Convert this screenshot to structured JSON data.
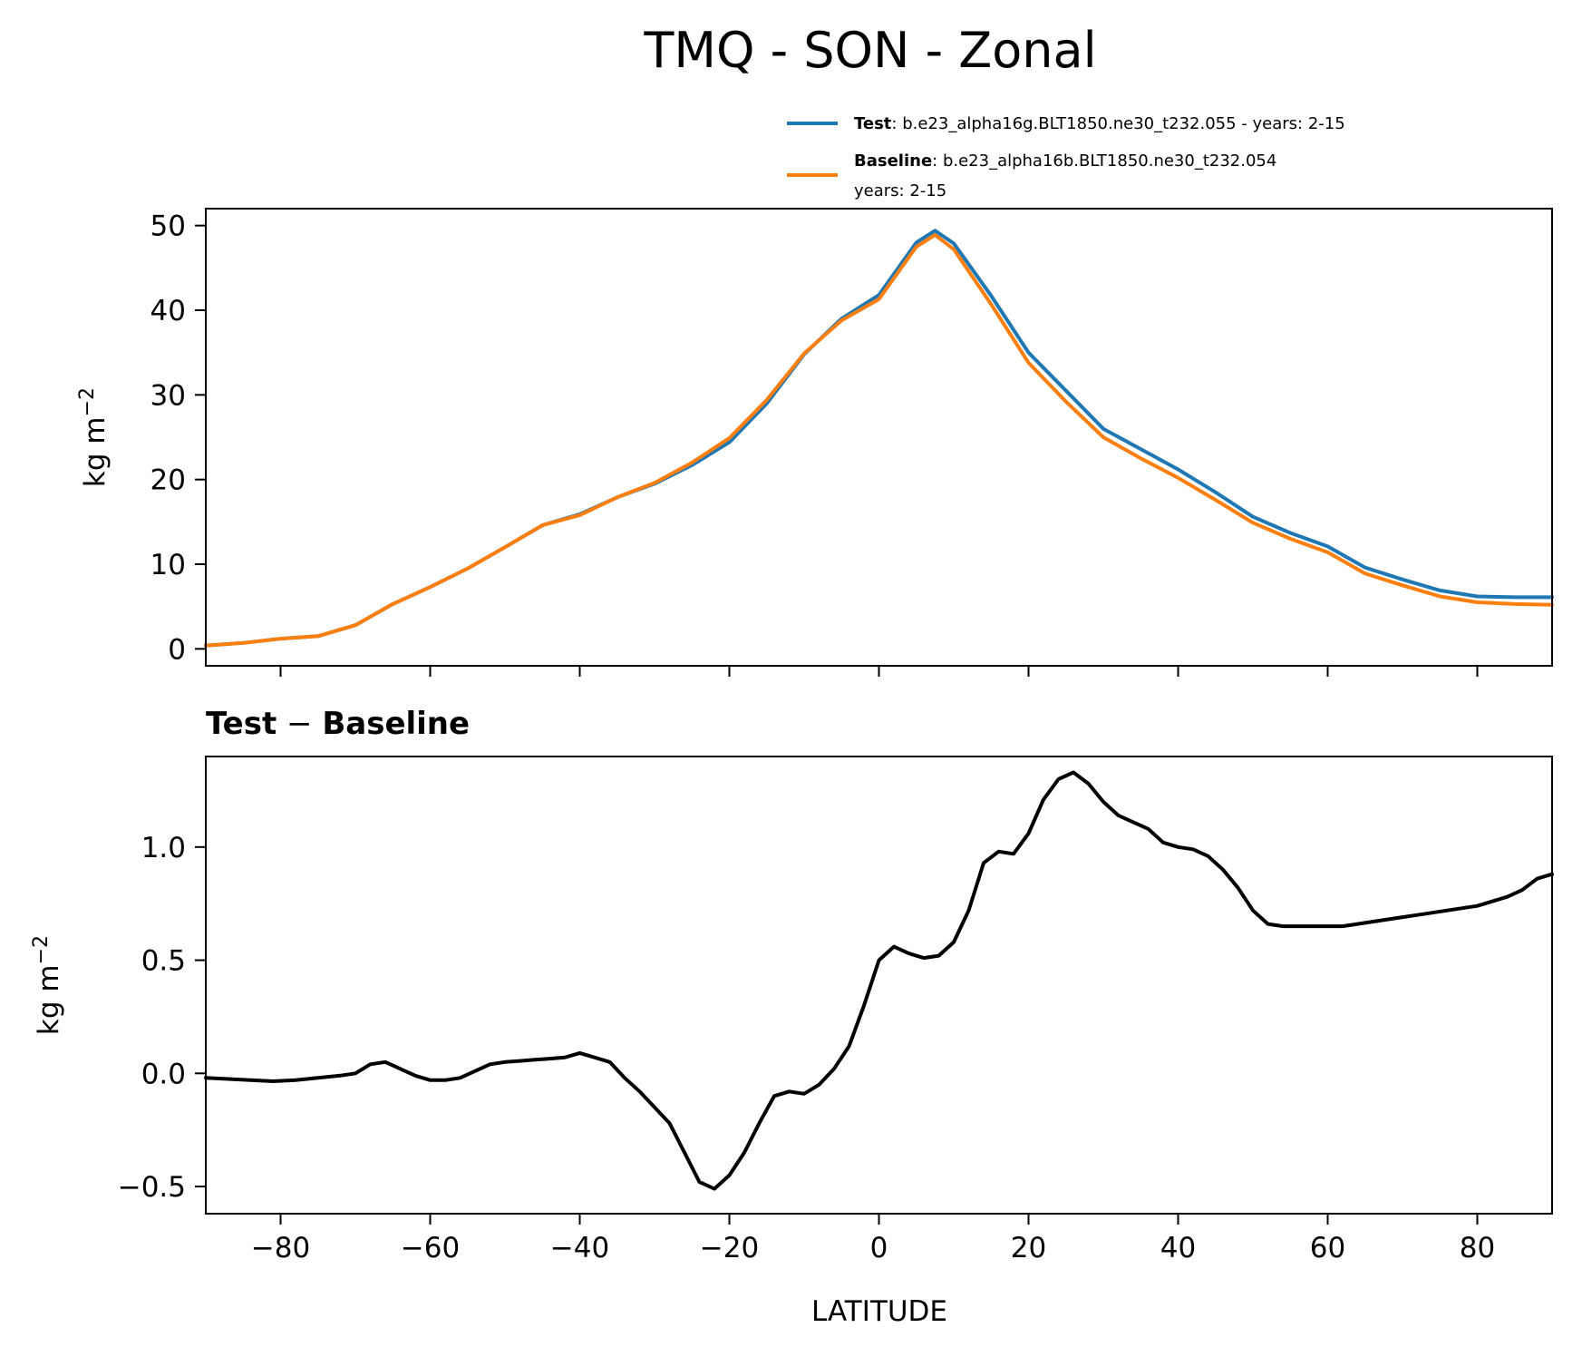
{
  "chart_data": [
    {
      "type": "line",
      "title": "TMQ - SON - Zonal",
      "xlabel": "",
      "ylabel": "kg m",
      "ylabel_sup": "−2",
      "xlim": [
        -90,
        90
      ],
      "ylim": [
        -2,
        52
      ],
      "xticks": [
        -80,
        -60,
        -40,
        -20,
        0,
        20,
        40,
        60,
        80
      ],
      "yticks": [
        0,
        10,
        20,
        30,
        40,
        50
      ],
      "ytick_labels": [
        "0",
        "10",
        "20",
        "30",
        "40",
        "50"
      ],
      "legend": [
        {
          "bold": "Test",
          "text": ": b.e23_alpha16g.BLT1850.ne30_t232.055 - years: 2-15",
          "color": "#1f77b4"
        },
        {
          "bold": "Baseline",
          "text": ": b.e23_alpha16b.BLT1850.ne30_t232.054",
          "text2": "years: 2-15",
          "color": "#ff7f0e"
        }
      ],
      "x": [
        -90,
        -85,
        -80,
        -75,
        -70,
        -65,
        -60,
        -55,
        -50,
        -45,
        -40,
        -35,
        -30,
        -25,
        -20,
        -15,
        -10,
        -5,
        0,
        5,
        7.5,
        10,
        15,
        20,
        25,
        30,
        35,
        40,
        45,
        50,
        55,
        60,
        65,
        70,
        75,
        80,
        85,
        90
      ],
      "series": [
        {
          "name": "Test",
          "color": "#1f77b4",
          "values": [
            0.4,
            0.7,
            1.2,
            1.5,
            2.8,
            5.3,
            7.3,
            9.5,
            12.0,
            14.6,
            15.9,
            17.9,
            19.5,
            21.7,
            24.4,
            29.0,
            34.8,
            39.0,
            41.8,
            48.0,
            49.4,
            47.9,
            41.7,
            35.0,
            30.5,
            26.0,
            23.6,
            21.2,
            18.5,
            15.6,
            13.7,
            12.1,
            9.6,
            8.2,
            6.9,
            6.2,
            6.1,
            6.1
          ]
        },
        {
          "name": "Baseline",
          "color": "#ff7f0e",
          "values": [
            0.4,
            0.7,
            1.2,
            1.5,
            2.8,
            5.3,
            7.3,
            9.5,
            12.0,
            14.6,
            15.8,
            17.9,
            19.6,
            22.0,
            24.9,
            29.4,
            34.9,
            38.8,
            41.3,
            47.5,
            48.9,
            47.2,
            40.7,
            33.8,
            29.2,
            25.0,
            22.5,
            20.2,
            17.6,
            14.9,
            13.0,
            11.4,
            8.9,
            7.5,
            6.2,
            5.5,
            5.3,
            5.2
          ]
        }
      ]
    },
    {
      "type": "line",
      "title": "Test − Baseline",
      "title_bold_1": "Test",
      "title_sep": " − ",
      "title_bold_2": "Baseline",
      "xlabel": "LATITUDE",
      "ylabel": "kg m",
      "ylabel_sup": "−2",
      "xlim": [
        -90,
        90
      ],
      "ylim": [
        -0.62,
        1.4
      ],
      "xticks": [
        -80,
        -60,
        -40,
        -20,
        0,
        20,
        40,
        60,
        80
      ],
      "xtick_labels": [
        "−80",
        "−60",
        "−40",
        "−20",
        "0",
        "20",
        "40",
        "60",
        "80"
      ],
      "yticks": [
        -0.5,
        0.0,
        0.5,
        1.0
      ],
      "ytick_labels": [
        "−0.5",
        "0.0",
        "0.5",
        "1.0"
      ],
      "series": [
        {
          "name": "Test − Baseline",
          "color": "#000000",
          "x": [
            -90,
            -87,
            -84,
            -81,
            -78,
            -75,
            -72,
            -70,
            -68,
            -66,
            -64,
            -62,
            -60,
            -58,
            -56,
            -54,
            -52,
            -50,
            -48,
            -46,
            -44,
            -42,
            -40,
            -38,
            -36,
            -34,
            -32,
            -30,
            -28,
            -26,
            -24,
            -22,
            -20,
            -18,
            -16,
            -14,
            -12,
            -10,
            -8,
            -6,
            -4,
            -2,
            0,
            2,
            4,
            6,
            8,
            10,
            12,
            14,
            16,
            18,
            20,
            22,
            24,
            26,
            28,
            30,
            32,
            34,
            36,
            38,
            40,
            42,
            44,
            46,
            48,
            50,
            52,
            54,
            56,
            58,
            60,
            62,
            64,
            66,
            68,
            70,
            72,
            74,
            76,
            78,
            80,
            82,
            84,
            86,
            88,
            90
          ],
          "values": [
            -0.02,
            -0.025,
            -0.03,
            -0.035,
            -0.03,
            -0.02,
            -0.01,
            0.0,
            0.04,
            0.05,
            0.02,
            -0.01,
            -0.03,
            -0.03,
            -0.02,
            0.01,
            0.04,
            0.05,
            0.055,
            0.06,
            0.065,
            0.07,
            0.09,
            0.07,
            0.05,
            -0.02,
            -0.08,
            -0.15,
            -0.22,
            -0.35,
            -0.48,
            -0.51,
            -0.45,
            -0.35,
            -0.22,
            -0.1,
            -0.08,
            -0.09,
            -0.05,
            0.02,
            0.12,
            0.3,
            0.5,
            0.56,
            0.53,
            0.51,
            0.52,
            0.58,
            0.72,
            0.93,
            0.98,
            0.97,
            1.06,
            1.21,
            1.3,
            1.33,
            1.28,
            1.2,
            1.14,
            1.11,
            1.08,
            1.02,
            1.0,
            0.99,
            0.96,
            0.9,
            0.82,
            0.72,
            0.66,
            0.65,
            0.65,
            0.65,
            0.65,
            0.65,
            0.66,
            0.67,
            0.68,
            0.69,
            0.7,
            0.71,
            0.72,
            0.73,
            0.74,
            0.76,
            0.78,
            0.81,
            0.86,
            0.88
          ]
        }
      ]
    }
  ]
}
